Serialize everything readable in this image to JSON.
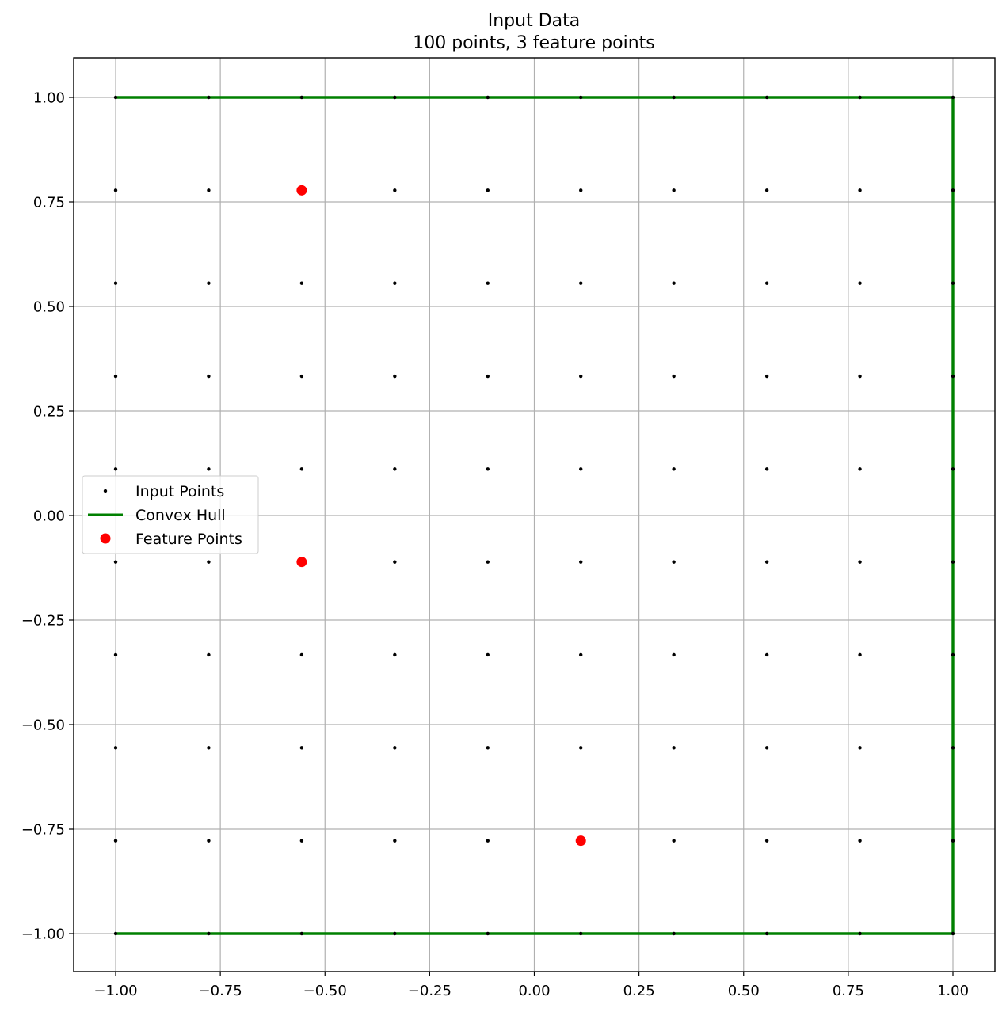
{
  "chart_data": {
    "type": "scatter",
    "title": "Input Data",
    "subtitle": "100 points, 3 feature points",
    "xlabel": "",
    "ylabel": "",
    "xlim": [
      -1.1,
      1.1
    ],
    "ylim": [
      -1.1,
      1.1
    ],
    "grid": true,
    "legend_position": "center-left",
    "x_ticks": [
      -1.0,
      -0.75,
      -0.5,
      -0.25,
      0.0,
      0.25,
      0.5,
      0.75,
      1.0
    ],
    "y_ticks": [
      -1.0,
      -0.75,
      -0.5,
      -0.25,
      0.0,
      0.25,
      0.5,
      0.75,
      1.0
    ],
    "x_tick_labels": [
      "−1.00",
      "−0.75",
      "−0.50",
      "−0.25",
      "0.00",
      "0.25",
      "0.50",
      "0.75",
      "1.00"
    ],
    "y_tick_labels": [
      "−1.00",
      "−0.75",
      "−0.50",
      "−0.25",
      "0.00",
      "0.25",
      "0.50",
      "0.75",
      "1.00"
    ],
    "series": [
      {
        "name": "Input Points",
        "kind": "grid-points",
        "color": "#000000",
        "grid_values": [
          -1.0,
          -0.7778,
          -0.5556,
          -0.3333,
          -0.1111,
          0.1111,
          0.3333,
          0.5556,
          0.7778,
          1.0
        ]
      },
      {
        "name": "Convex Hull",
        "kind": "line",
        "color": "#008000",
        "points": [
          [
            -1.0,
            1.0
          ],
          [
            1.0,
            1.0
          ],
          [
            1.0,
            -1.0
          ],
          [
            -1.0,
            -1.0
          ]
        ]
      },
      {
        "name": "Feature Points",
        "kind": "points",
        "color": "#ff0000",
        "points": [
          [
            -0.5556,
            0.7778
          ],
          [
            -0.5556,
            -0.1111
          ],
          [
            0.1111,
            -0.7778
          ]
        ]
      }
    ]
  }
}
